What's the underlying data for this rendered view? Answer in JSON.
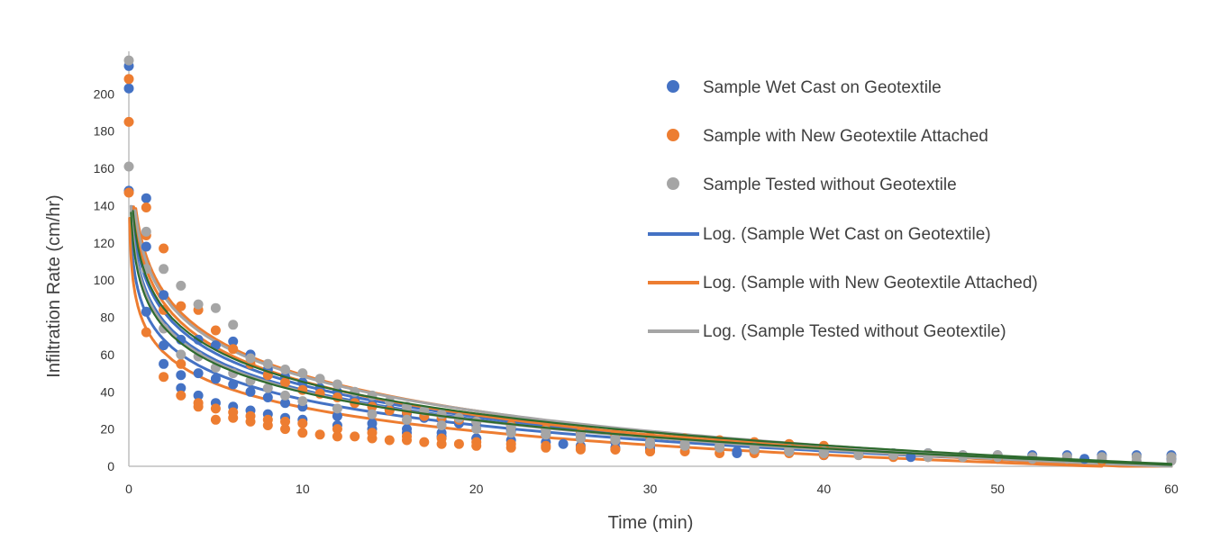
{
  "chart_data": {
    "type": "scatter",
    "title": "",
    "xlabel": "Time (min)",
    "ylabel": "Infiltration Rate (cm/hr)",
    "xlim": [
      0,
      60
    ],
    "ylim": [
      0,
      220
    ],
    "x_ticks": [
      0,
      10,
      20,
      30,
      40,
      50,
      60
    ],
    "y_ticks": [
      0,
      20,
      40,
      60,
      80,
      100,
      120,
      140,
      160,
      180,
      200
    ],
    "x_tick_labels": [
      "0",
      "10",
      "20",
      "30",
      "40",
      "50",
      "60"
    ],
    "y_tick_labels": [
      "0",
      "20",
      "40",
      "60",
      "80",
      "100",
      "120",
      "140",
      "160",
      "180",
      "200"
    ],
    "grid": false,
    "legend_position": "top-right",
    "series": [
      {
        "name": "Sample Wet Cast on Geotextile",
        "kind": "scatter",
        "color": "#4472c4",
        "runs": [
          {
            "x": [
              0,
              1,
              2,
              3,
              4,
              5,
              6,
              7,
              8,
              9,
              10,
              11,
              12,
              13,
              14,
              15,
              16,
              17,
              18,
              19,
              20,
              22,
              24,
              26,
              28,
              30,
              32,
              34,
              36,
              38,
              40,
              42,
              44,
              46,
              48,
              50,
              52,
              54,
              56,
              58,
              60
            ],
            "y": [
              215,
              144,
              92,
              68,
              68,
              65,
              67,
              60,
              52,
              48,
              45,
              42,
              40,
              36,
              33,
              31,
              28,
              26,
              25,
              23,
              22,
              19,
              17,
              15,
              13,
              12,
              11,
              10,
              9,
              8,
              7,
              7,
              7,
              7,
              6,
              6,
              6,
              6,
              6,
              6,
              6
            ]
          },
          {
            "x": [
              0,
              1,
              2,
              3,
              4,
              5,
              6,
              7,
              8,
              9,
              10,
              12,
              14,
              16,
              18,
              20,
              22,
              24,
              26,
              28,
              30,
              35,
              40,
              45,
              50,
              55,
              60
            ],
            "y": [
              148,
              118,
              65,
              49,
              50,
              47,
              44,
              40,
              37,
              34,
              32,
              27,
              23,
              20,
              18,
              15,
              14,
              13,
              11,
              10,
              9,
              7,
              6,
              5,
              5,
              4,
              4
            ]
          },
          {
            "x": [
              0,
              1,
              2,
              3,
              4,
              5,
              6,
              7,
              8,
              9,
              10,
              12,
              14,
              16,
              18,
              20,
              25,
              30,
              35,
              40
            ],
            "y": [
              203,
              83,
              55,
              42,
              38,
              34,
              32,
              30,
              28,
              26,
              25,
              22,
              20,
              18,
              16,
              15,
              12,
              10,
              8,
              6
            ]
          }
        ]
      },
      {
        "name": "Sample with New Geotextile Attached",
        "kind": "scatter",
        "color": "#ed7d31",
        "runs": [
          {
            "x": [
              0,
              1,
              2,
              3,
              4,
              5,
              6,
              7,
              8,
              9,
              10,
              11,
              12,
              13,
              14,
              15,
              16,
              17,
              18,
              19,
              20,
              22,
              24,
              26,
              28,
              30,
              32,
              34,
              36,
              38,
              40
            ],
            "y": [
              208,
              139,
              117,
              86,
              84,
              73,
              63,
              55,
              49,
              45,
              41,
              39,
              37,
              34,
              32,
              30,
              29,
              27,
              26,
              25,
              24,
              22,
              20,
              18,
              17,
              16,
              15,
              14,
              13,
              12,
              11
            ]
          },
          {
            "x": [
              0,
              1,
              2,
              3,
              4,
              5,
              6,
              7,
              8,
              9,
              10,
              11,
              12,
              13,
              14,
              15,
              16,
              17,
              18,
              19,
              20,
              22,
              24,
              26,
              28,
              30,
              32,
              34,
              36,
              38,
              40,
              42,
              44,
              46,
              48,
              50,
              52,
              54,
              56
            ],
            "y": [
              147,
              124,
              84,
              55,
              32,
              25,
              26,
              24,
              22,
              20,
              18,
              17,
              16,
              16,
              15,
              14,
              14,
              13,
              12,
              12,
              11,
              10,
              10,
              9,
              9,
              8,
              8,
              7,
              7,
              7,
              6,
              6,
              5,
              5,
              5,
              4,
              4,
              4,
              3
            ]
          },
          {
            "x": [
              0,
              1,
              2,
              3,
              4,
              5,
              6,
              7,
              8,
              9,
              10,
              12,
              14,
              16,
              18,
              20,
              22,
              24,
              26,
              28,
              30
            ],
            "y": [
              185,
              72,
              48,
              38,
              34,
              31,
              29,
              27,
              25,
              24,
              23,
              20,
              18,
              16,
              15,
              13,
              12,
              11,
              10,
              9,
              8
            ]
          }
        ]
      },
      {
        "name": "Sample Tested without Geotextile",
        "kind": "scatter",
        "color": "#a5a5a5",
        "runs": [
          {
            "x": [
              0,
              1,
              2,
              3,
              4,
              5,
              6,
              7,
              8,
              9,
              10,
              11,
              12,
              13,
              14,
              15,
              16,
              17,
              18,
              19,
              20,
              22,
              24,
              26,
              28,
              30,
              32,
              34,
              36,
              38,
              40,
              42,
              44,
              46,
              48,
              50,
              52,
              54,
              56,
              58,
              60
            ],
            "y": [
              218,
              126,
              106,
              97,
              87,
              85,
              76,
              58,
              55,
              52,
              50,
              47,
              44,
              40,
              38,
              35,
              32,
              30,
              28,
              26,
              24,
              21,
              19,
              17,
              15,
              13,
              12,
              11,
              10,
              9,
              8,
              8,
              7,
              7,
              6,
              6,
              5,
              5,
              5,
              5,
              5
            ]
          },
          {
            "x": [
              0,
              1,
              2,
              3,
              4,
              5,
              6,
              7,
              8,
              9,
              10,
              12,
              14,
              16,
              18,
              20,
              22,
              24,
              26,
              28,
              30,
              32,
              34,
              36,
              38,
              40,
              42,
              44,
              46,
              48,
              50,
              52,
              54,
              56,
              58,
              60
            ],
            "y": [
              161,
              106,
              74,
              60,
              59,
              53,
              50,
              46,
              42,
              38,
              35,
              31,
              28,
              25,
              22,
              20,
              18,
              17,
              15,
              14,
              12,
              11,
              10,
              9,
              8,
              7,
              6,
              6,
              5,
              5,
              5,
              4,
              4,
              4,
              3,
              3
            ]
          }
        ]
      },
      {
        "name": "Log. (Sample Wet Cast on Geotextile)",
        "kind": "log-trendline",
        "color": "#4472c4",
        "fits": [
          {
            "a": 94,
            "b": -23.0,
            "xmax": 60
          },
          {
            "a": 82,
            "b": -20.0,
            "xmax": 60
          },
          {
            "a": 100,
            "b": -24.5,
            "xmax": 60
          }
        ]
      },
      {
        "name": "Log. (Sample with New Geotextile Attached)",
        "kind": "log-trendline",
        "color": "#ed7d31",
        "fits": [
          {
            "a": 74,
            "b": -18.4,
            "xmax": 56
          },
          {
            "a": 113,
            "b": -27.8,
            "xmax": 60
          },
          {
            "a": 106,
            "b": -26.2,
            "xmax": 60
          }
        ]
      },
      {
        "name": "Log. (Sample Tested without Geotextile)",
        "kind": "log-trendline",
        "color": "#a5a5a5",
        "fits": [
          {
            "a": 110,
            "b": -26.8,
            "xmax": 60
          },
          {
            "a": 92,
            "b": -22.5,
            "xmax": 60
          }
        ]
      },
      {
        "kind": "overlay-trendline",
        "color": "#2e6b2e",
        "fits": [
          {
            "a": 102,
            "b": -24.6,
            "xmax": 60
          },
          {
            "a": 90,
            "b": -21.8,
            "xmax": 60
          }
        ]
      }
    ]
  }
}
